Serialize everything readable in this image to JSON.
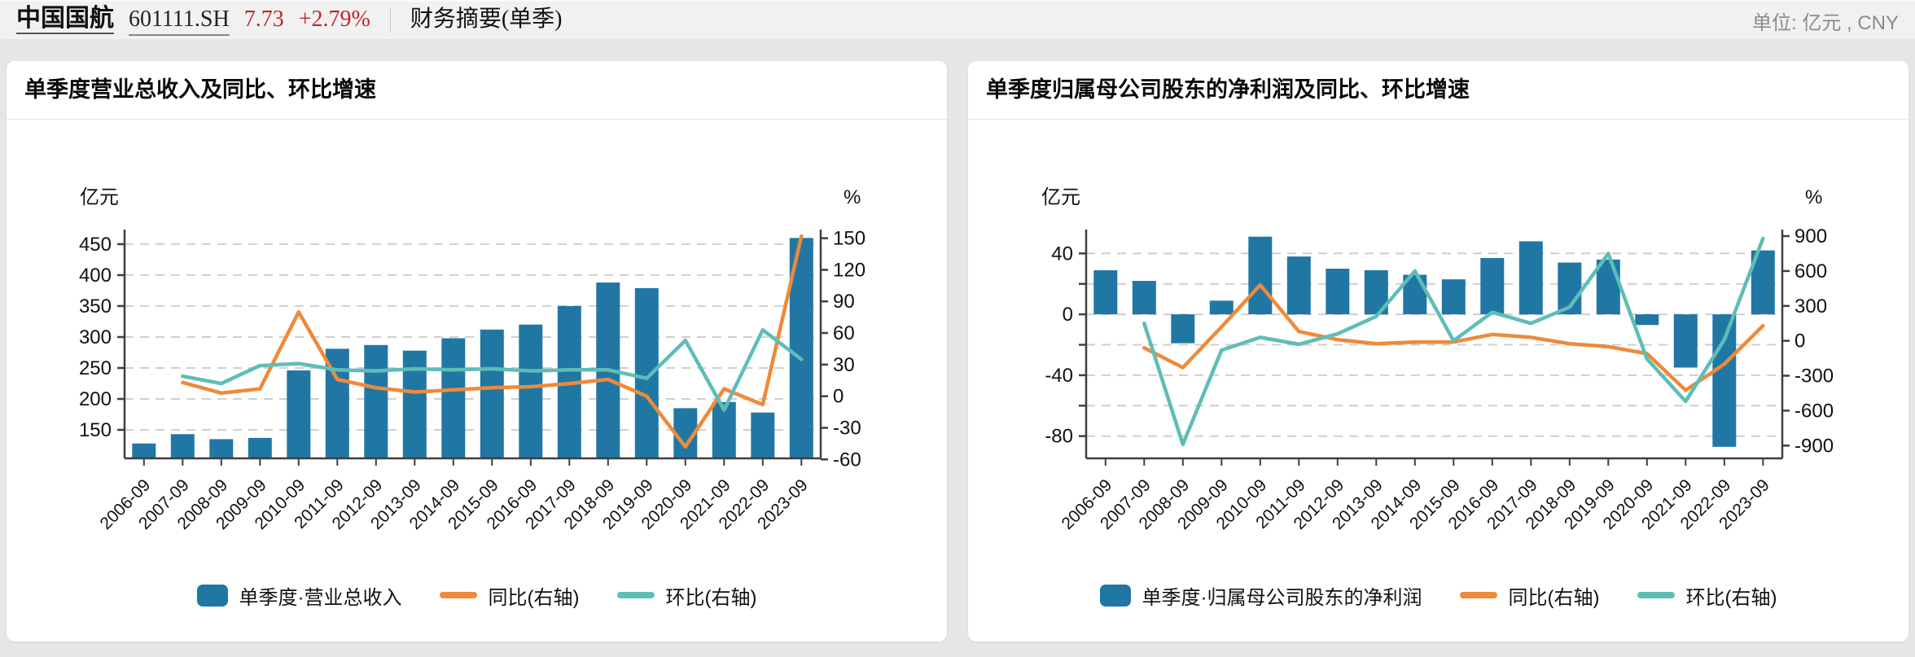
{
  "header": {
    "company": "中国国航",
    "code": "601111.SH",
    "price": "7.73",
    "change": "+2.79%",
    "page_title": "财务摘要(单季)",
    "unit_note": "单位: 亿元 , CNY"
  },
  "colors": {
    "bar": "#2177a4",
    "yoy": "#ee8a3a",
    "qoq": "#5fbdb8",
    "red": "#bf2626",
    "grid": "#cfcfcf",
    "axis": "#3f3f3f",
    "text": "#111111"
  },
  "chart_data": [
    {
      "type": "bar+line",
      "title": "单季度营业总收入及同比、环比增速",
      "categories": [
        "2006-09",
        "2007-09",
        "2008-09",
        "2009-09",
        "2010-09",
        "2011-09",
        "2012-09",
        "2013-09",
        "2014-09",
        "2015-09",
        "2016-09",
        "2017-09",
        "2018-09",
        "2019-09",
        "2020-09",
        "2021-09",
        "2022-09",
        "2023-09"
      ],
      "series": [
        {
          "name": "单季度·营业总收入",
          "type": "bar",
          "axis": "left",
          "color_key": "bar",
          "values": [
            128,
            143,
            135,
            137,
            246,
            281,
            287,
            278,
            298,
            312,
            320,
            350,
            388,
            379,
            185,
            195,
            178,
            460
          ]
        },
        {
          "name": "同比(右轴)",
          "type": "line",
          "axis": "right",
          "color_key": "yoy",
          "values": [
            null,
            13,
            3,
            7,
            80,
            16,
            8,
            4,
            6,
            8,
            9,
            12,
            16,
            0,
            -48,
            7,
            -8,
            152
          ]
        },
        {
          "name": "环比(右轴)",
          "type": "line",
          "axis": "right",
          "color_key": "qoq",
          "values": [
            null,
            19,
            12,
            29,
            31,
            25,
            24,
            26,
            25,
            26,
            24,
            25,
            25,
            17,
            53,
            -13,
            63,
            35
          ]
        }
      ],
      "left_axis": {
        "unit": "亿元",
        "ticks": [
          450,
          400,
          350,
          300,
          250,
          200,
          150
        ],
        "labeled": [
          450,
          400,
          350,
          300,
          250,
          200,
          150
        ],
        "domain": [
          104,
          463
        ]
      },
      "right_axis": {
        "unit": "%",
        "ticks": [
          150,
          120,
          90,
          60,
          30,
          0,
          -30,
          -60
        ],
        "labeled": [
          150,
          120,
          90,
          60,
          30,
          0,
          -30,
          -60
        ],
        "domain": [
          -59,
          152
        ]
      },
      "bar_baseline": null,
      "grid": "dashed",
      "legend_position": "bottom"
    },
    {
      "type": "bar+line",
      "title": "单季度归属母公司股东的净利润及同比、环比增速",
      "categories": [
        "2006-09",
        "2007-09",
        "2008-09",
        "2009-09",
        "2010-09",
        "2011-09",
        "2012-09",
        "2013-09",
        "2014-09",
        "2015-09",
        "2016-09",
        "2017-09",
        "2018-09",
        "2019-09",
        "2020-09",
        "2021-09",
        "2022-09",
        "2023-09"
      ],
      "series": [
        {
          "name": "单季度·归属母公司股东的净利润",
          "type": "bar",
          "axis": "left",
          "color_key": "bar",
          "values": [
            29,
            22,
            -19,
            9,
            51,
            38,
            30,
            29,
            26,
            23,
            37,
            48,
            34,
            36,
            -7,
            -35,
            -87,
            42
          ]
        },
        {
          "name": "同比(右轴)",
          "type": "line",
          "axis": "right",
          "color_key": "yoy",
          "values": [
            null,
            -60,
            -230,
            120,
            480,
            80,
            10,
            -25,
            -10,
            -10,
            55,
            30,
            -25,
            -50,
            -110,
            -425,
            -200,
            130
          ]
        },
        {
          "name": "环比(右轴)",
          "type": "line",
          "axis": "right",
          "color_key": "qoq",
          "values": [
            null,
            150,
            -890,
            -80,
            30,
            -30,
            60,
            210,
            600,
            0,
            245,
            150,
            290,
            750,
            -155,
            -520,
            10,
            880
          ]
        }
      ],
      "left_axis": {
        "unit": "亿元",
        "ticks": [
          40,
          20,
          0,
          -20,
          -40,
          -60,
          -80
        ],
        "labeled": [
          40,
          0,
          -40,
          -80
        ],
        "domain": [
          -94.6,
          51.4
        ]
      },
      "right_axis": {
        "unit": "%",
        "ticks": [
          900,
          600,
          300,
          0,
          -300,
          -600,
          -900
        ],
        "labeled": [
          900,
          600,
          300,
          0,
          -300,
          -600,
          -900
        ],
        "domain": [
          -1010,
          900
        ]
      },
      "bar_baseline": 0,
      "grid": "dashed",
      "legend_position": "bottom"
    }
  ]
}
